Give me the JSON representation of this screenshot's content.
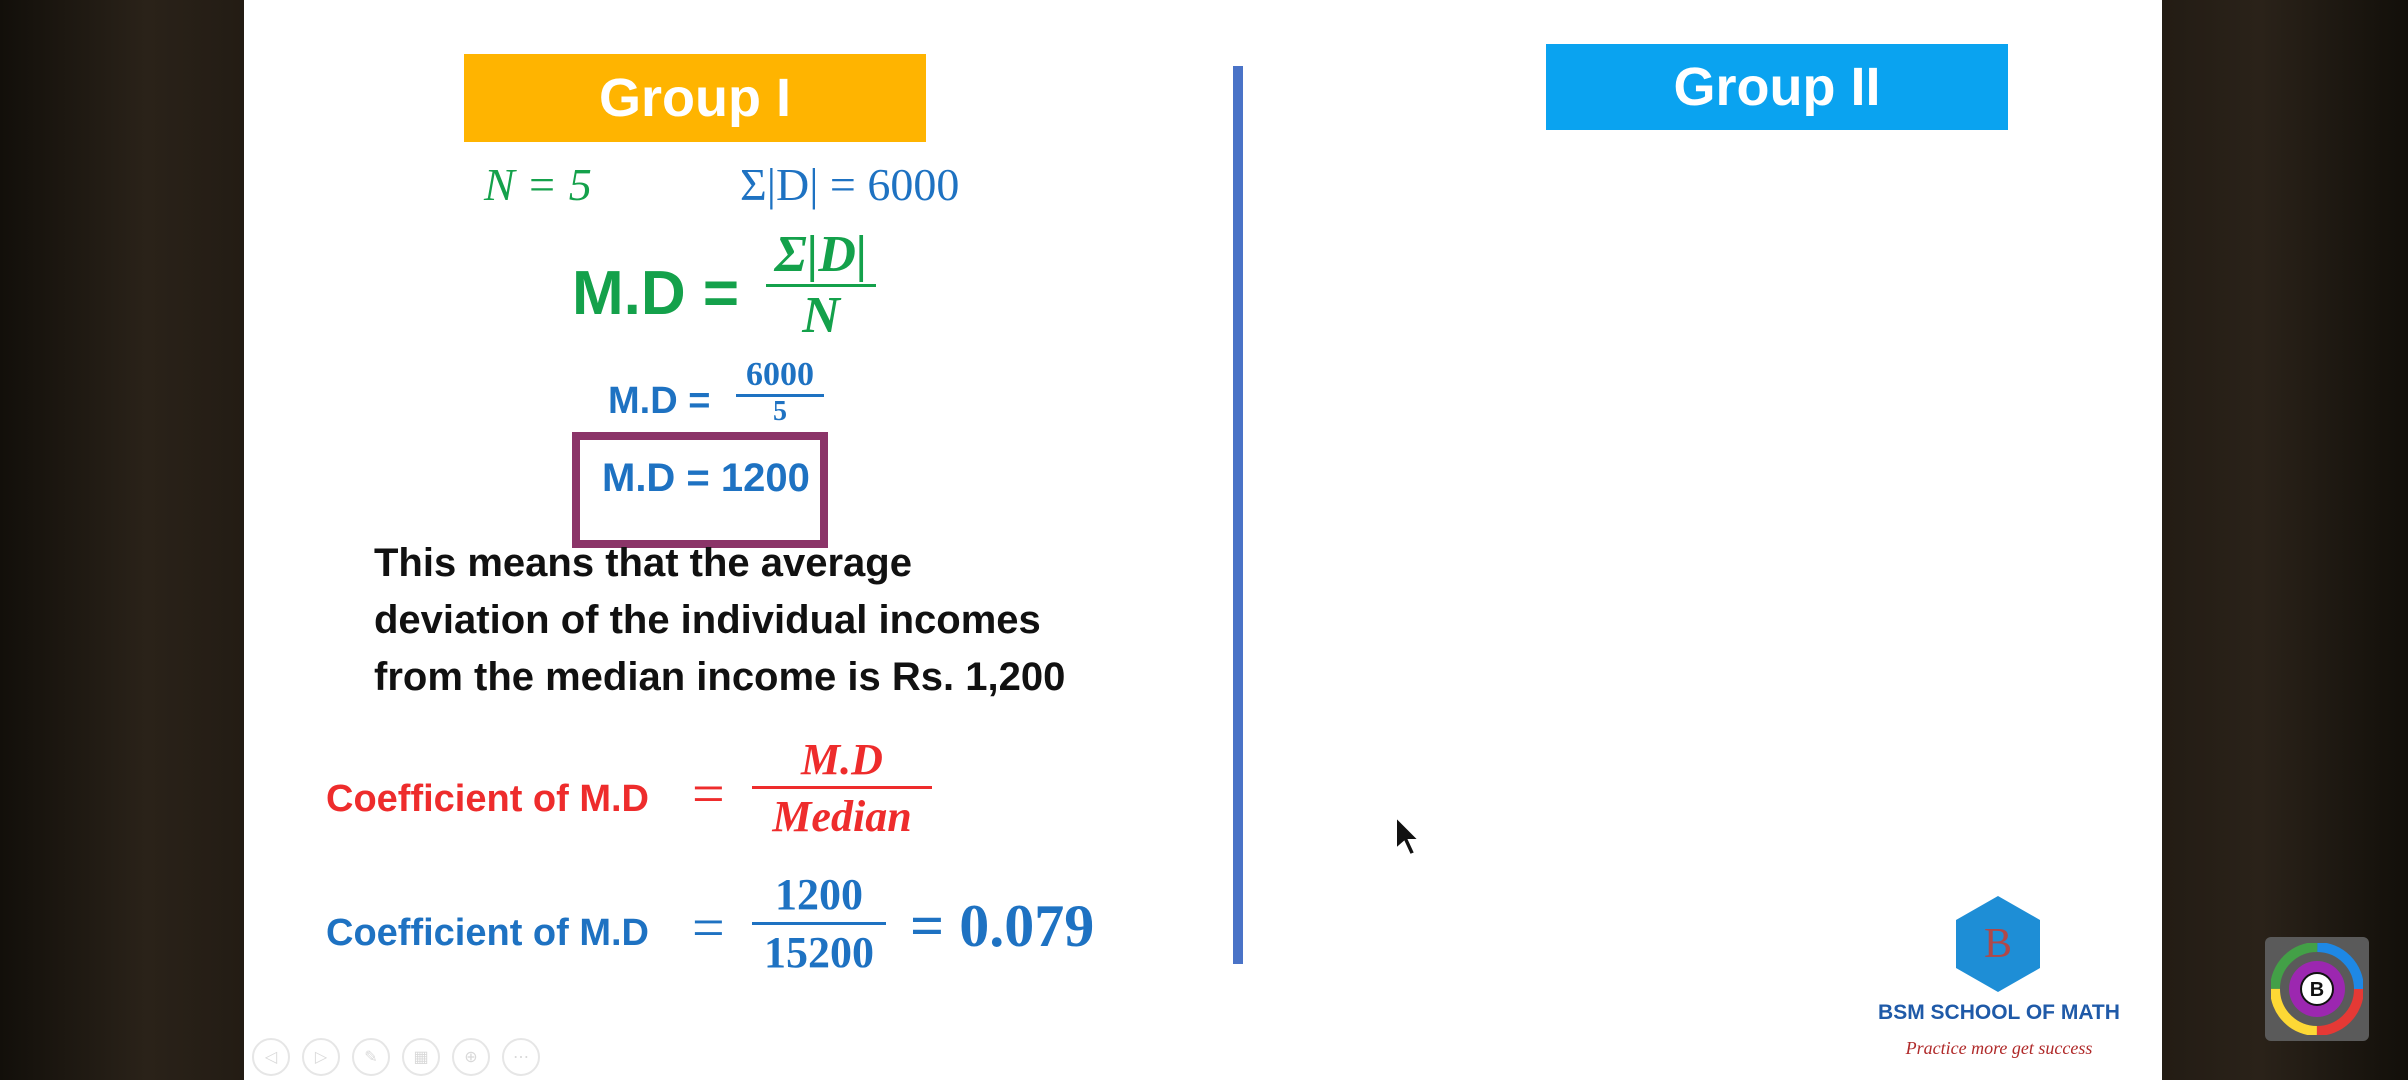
{
  "slide": {
    "group1_title": "Group I",
    "group2_title": "Group II",
    "given": {
      "n": "N = 5",
      "sum_d": "Σ|D| = 6000"
    },
    "formula": {
      "lhs": "M.D =",
      "numerator": "Σ|D|",
      "denominator": "N"
    },
    "substitution": {
      "lhs": "M.D =",
      "numerator": "6000",
      "denominator": "5"
    },
    "result": "M.D = 1200",
    "explanation": [
      "This means that the average",
      "deviation of the individual incomes",
      "from the median income is Rs. 1,200"
    ],
    "coefficient_formula": {
      "lhs": "Coefficient of M.D",
      "eq": "=",
      "numerator": "M.D",
      "denominator": "Median"
    },
    "coefficient_value": {
      "lhs": "Coefficient of M.D",
      "eq": "=",
      "numerator": "1200",
      "denominator": "15200",
      "result": "= 0.079"
    }
  },
  "branding": {
    "logo_letter": "B",
    "name": "BSM SCHOOL OF MATH",
    "tagline": "Practice more get success"
  },
  "corner_badge_letter": "B",
  "icons": {
    "nav": [
      "back-icon",
      "forward-icon",
      "pen-icon",
      "slides-icon",
      "zoom-icon",
      "more-icon"
    ]
  },
  "colors": {
    "group1": "#ffb400",
    "group2": "#0aa3f0",
    "green": "#14a14b",
    "blue": "#1e72c2",
    "red": "#ee2c2c",
    "box_border": "#8b3468",
    "divider": "#4a73c7"
  }
}
